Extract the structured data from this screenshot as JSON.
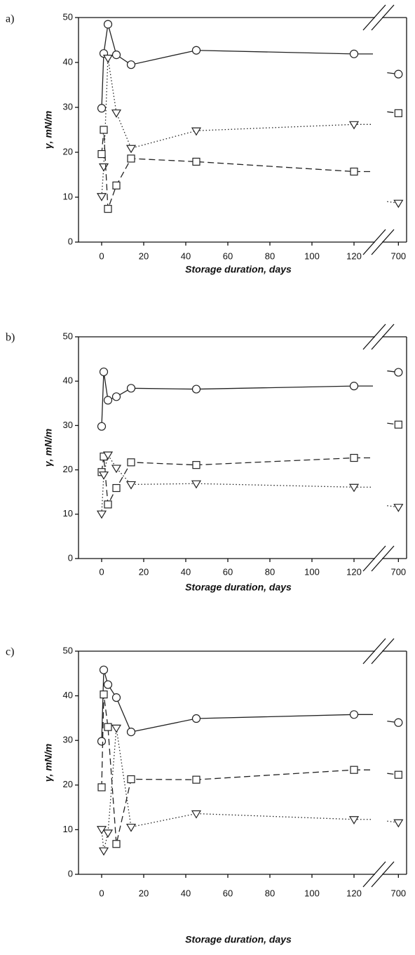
{
  "chart_data": [
    {
      "type": "line",
      "panel_label": "a)",
      "ylabel": "γ, mN/m",
      "xlabel": "Storage duration, days",
      "x": [
        0,
        1,
        3,
        7,
        14,
        45,
        120,
        700
      ],
      "series": [
        {
          "marker": "circle",
          "dash": "solid",
          "color": "#222222",
          "values": [
            29.8,
            42,
            48.5,
            41.7,
            39.5,
            42.7,
            41.9,
            37.4
          ]
        },
        {
          "marker": "triangle",
          "dash": "dotted",
          "color": "#222222",
          "values": [
            10.2,
            16.8,
            41,
            28.8,
            20.9,
            24.8,
            26.2,
            8.7
          ]
        },
        {
          "marker": "square",
          "dash": "dashed",
          "color": "#222222",
          "values": [
            19.6,
            25,
            7.4,
            12.6,
            18.6,
            17.9,
            15.7,
            28.7
          ]
        }
      ],
      "xlim": [
        -11,
        705
      ],
      "xbreak": [
        130,
        690
      ],
      "ylim": [
        0,
        50
      ],
      "xticks": [
        0,
        20,
        40,
        60,
        80,
        100,
        120,
        700
      ],
      "yticks": [
        0,
        10,
        20,
        30,
        40,
        50
      ]
    },
    {
      "type": "line",
      "panel_label": "b)",
      "ylabel": "γ, mN/m",
      "xlabel": "Storage duration, days",
      "x": [
        0,
        1,
        3,
        7,
        14,
        45,
        120,
        700
      ],
      "series": [
        {
          "marker": "circle",
          "dash": "solid",
          "color": "#222222",
          "values": [
            29.8,
            42.1,
            35.7,
            36.5,
            38.4,
            38.2,
            38.9,
            42
          ]
        },
        {
          "marker": "square",
          "dash": "dashed",
          "color": "#222222",
          "values": [
            19.5,
            23,
            12.2,
            15.9,
            21.7,
            21.1,
            22.7,
            30.2
          ]
        },
        {
          "marker": "triangle",
          "dash": "dotted",
          "color": "#222222",
          "values": [
            10.1,
            18.9,
            23.4,
            20.4,
            16.7,
            16.9,
            16.1,
            11.6
          ]
        }
      ],
      "xlim": [
        -11,
        705
      ],
      "xbreak": [
        130,
        690
      ],
      "ylim": [
        0,
        50
      ],
      "xticks": [
        0,
        20,
        40,
        60,
        80,
        100,
        120,
        700
      ],
      "yticks": [
        0,
        10,
        20,
        30,
        40,
        50
      ]
    },
    {
      "type": "line",
      "panel_label": "c)",
      "ylabel": "γ, mN/m",
      "xlabel": "Storage duration, days",
      "x": [
        0,
        1,
        3,
        7,
        14,
        45,
        120,
        700
      ],
      "series": [
        {
          "marker": "circle",
          "dash": "solid",
          "color": "#222222",
          "values": [
            29.8,
            45.8,
            42.5,
            39.6,
            31.9,
            34.9,
            35.8,
            34
          ]
        },
        {
          "marker": "square",
          "dash": "dashed",
          "color": "#222222",
          "values": [
            19.5,
            40.3,
            33,
            6.8,
            21.3,
            21.2,
            23.4,
            22.3
          ]
        },
        {
          "marker": "triangle",
          "dash": "dotted",
          "color": "#222222",
          "values": [
            10.1,
            5.3,
            9.3,
            32.8,
            10.6,
            13.6,
            12.3,
            11.6
          ]
        }
      ],
      "xlim": [
        -11,
        705
      ],
      "xbreak": [
        130,
        690
      ],
      "ylim": [
        0,
        50
      ],
      "xticks": [
        0,
        20,
        40,
        60,
        80,
        100,
        120,
        700
      ],
      "yticks": [
        0,
        10,
        20,
        30,
        40,
        50
      ]
    }
  ]
}
